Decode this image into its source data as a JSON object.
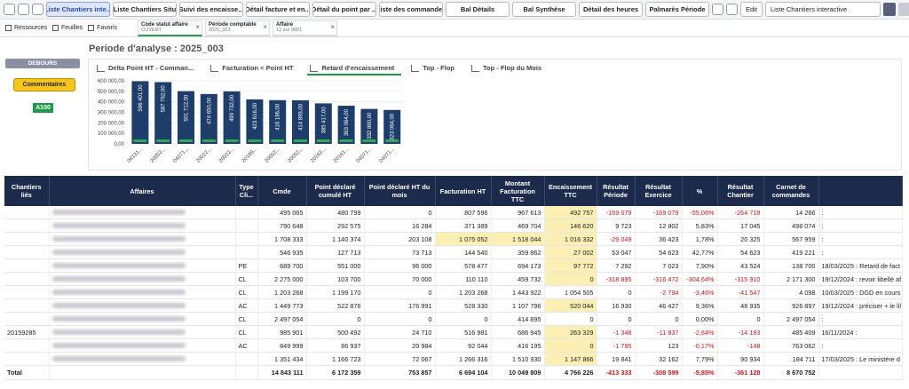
{
  "toolbar": {
    "tabs": [
      "Liste Chantiers inte...",
      "Liste Chantiers Situ",
      "Suivi des encaisse...",
      "Détail facture et en...",
      "Détail du point par ...",
      "Liste des commandes",
      "Bal Détails",
      "Bal Synthèse",
      "Détail des heures",
      "Palmarès Période"
    ],
    "active_tab": 0,
    "edit": "Edit",
    "current": "Liste Chantiers interactive"
  },
  "subbar": {
    "links": [
      "Ressources",
      "Feuilles",
      "Favoris"
    ],
    "filters": [
      {
        "label": "Code statut affaire",
        "value": "OUVERT"
      },
      {
        "label": "Période comptable",
        "value": "2025_003"
      },
      {
        "label": "Affaire",
        "value": "12 sur 9851"
      }
    ]
  },
  "sidebar": {
    "section": "DEBOURS",
    "button": "Commentaires",
    "badge": "A100"
  },
  "analysis": {
    "title": "Periode d'analyse : 2025_003",
    "tabs": [
      "Delta Point HT - Comman...",
      "Facturation < Point HT",
      "Retard d'encaissement",
      "Top - Flop",
      "Top - Flop du Mois"
    ],
    "active_tab": 2
  },
  "chart_data": {
    "type": "bar",
    "categories": [
      "06131...",
      "20052...",
      "04071...",
      "20022...",
      "20022...",
      "20189...",
      "20052...",
      "20052...",
      "20162...",
      "20161...",
      "04071...",
      "04071..."
    ],
    "values": [
      596401,
      587752,
      501712,
      474650,
      499732,
      423616,
      416196,
      414895,
      385417,
      363064,
      332860,
      323064
    ],
    "value_labels": [
      "596 401,00",
      "587 752,00",
      "501 712,00",
      "474 650,00",
      "499 732,00",
      "423 616,00",
      "416 196,00",
      "414 895,00",
      "385 417,00",
      "363 064,00",
      "332 860,00",
      "323 064,00"
    ],
    "color": "#1f3d6b",
    "ylim": [
      0,
      600000
    ],
    "yticks": [
      {
        "value": 0,
        "label": "0,00"
      },
      {
        "value": 100000,
        "label": "100 000,00"
      },
      {
        "value": 200000,
        "label": "200 000,00"
      },
      {
        "value": 300000,
        "label": "300 000,00"
      },
      {
        "value": 400000,
        "label": "400 000,00"
      },
      {
        "value": 500000,
        "label": "500 000,00"
      },
      {
        "value": 600000,
        "label": "600 000,00"
      }
    ],
    "grid": true
  },
  "table": {
    "columns": [
      "Chantiers liés",
      "Affaires",
      "Type Cli...",
      "Cmde",
      "Point déclaré cumulé HT",
      "Point déclaré HT du mois",
      "Facturation HT",
      "Montant Facturation TTC",
      "Encaissement TTC",
      "Résultat Période",
      "Résultat Exercice",
      "%",
      "Résultat Chantier",
      "Carnet de commandes"
    ],
    "rows": [
      [
        null,
        null,
        "495 065",
        "480 799",
        "0",
        "807 596",
        "967 613",
        "492 757",
        "-169 079",
        "-169 079",
        "-55,06%",
        "-264 718",
        "14 266",
        ":"
      ],
      [
        null,
        null,
        "790 648",
        "292 575",
        "16 284",
        "371 389",
        "469 704",
        "146 620",
        "9 723",
        "12 802",
        "5,83%",
        "17 045",
        "498 074",
        ":"
      ],
      [
        null,
        null,
        "1 708 333",
        "1 140 374",
        "203 108",
        "1 075 052",
        "1 518 044",
        "1 016 332",
        "-29 049",
        "36 423",
        "1,78%",
        "20 325",
        "567 959",
        ":"
      ],
      [
        null,
        null,
        "546 935",
        "127 713",
        "73 713",
        "144 540",
        "359 862",
        "27 002",
        "53 047",
        "54 623",
        "42,77%",
        "54 623",
        "419 221",
        ":"
      ],
      [
        null,
        "PE",
        "689 700",
        "551 000",
        "96 000",
        "578 477",
        "694 173",
        "97 772",
        "7 292",
        "7 023",
        "7,90%",
        "43 524",
        "138 700",
        "18/03/2025 : Retard de fact"
      ],
      [
        null,
        "CL",
        "2 275 000",
        "103 700",
        "70 000",
        "110 110",
        "459 732",
        "0",
        "-318 895",
        "-316 472",
        "-304,64%",
        "-315 910",
        "2 171 300",
        "19/12/2024 : revoir libellé af"
      ],
      [
        null,
        "CL",
        "1 203 268",
        "1 199 170",
        "0",
        "1 203 268",
        "1 443 922",
        "1 054 505",
        "0",
        "-2 794",
        "-3,46%",
        "-41 547",
        "4 098",
        "10/03/2025 : DGD en cours"
      ],
      [
        null,
        "AC",
        "1 449 773",
        "522 876",
        "176 991",
        "528 330",
        "1 107 796",
        "520 044",
        "16 930",
        "46 427",
        "9,36%",
        "48 935",
        "926 897",
        "19/12/2024 : préciser + le lil"
      ],
      [
        null,
        "CL",
        "2 497 054",
        "0",
        "0",
        "0",
        "414 895",
        "0",
        "0",
        "0",
        "0,00%",
        "0",
        "2 497 054",
        ":"
      ],
      [
        "20159285",
        "CL",
        "985 901",
        "500 492",
        "24 710",
        "516 981",
        "686 945",
        "263 329",
        "-1 348",
        "-11 837",
        "-2,84%",
        "-14 193",
        "485 409",
        "16/11/2024 :"
      ],
      [
        null,
        "AC",
        "849 999",
        "86 937",
        "20 984",
        "92 044",
        "416 195",
        "0",
        "-1 795",
        "123",
        "-0,17%",
        "-148",
        "763 062",
        ":"
      ],
      [
        null,
        null,
        "1 351 434",
        "1 166 723",
        "72 067",
        "1 266 316",
        "1 510 930",
        "1 147 866",
        "19 841",
        "32 162",
        "7,79%",
        "90 934",
        "184 711",
        "17/03/2025 : Le ministère d"
      ]
    ],
    "highlighted": [
      [
        0,
        7
      ],
      [
        1,
        7
      ],
      [
        2,
        5
      ],
      [
        2,
        6
      ],
      [
        2,
        7
      ],
      [
        3,
        7
      ],
      [
        4,
        7
      ],
      [
        5,
        7
      ],
      [
        7,
        7
      ],
      [
        9,
        7
      ],
      [
        10,
        7
      ],
      [
        11,
        7
      ]
    ],
    "highlight_color": "#fcefb4",
    "total": {
      "label": "Total",
      "values": [
        "14 843 111",
        "6 172 359",
        "753 857",
        "6 694 104",
        "10 049 809",
        "4 766 226",
        "-413 333",
        "-308 599",
        "-5,85%",
        "-361 128",
        "8 670 752"
      ]
    }
  }
}
